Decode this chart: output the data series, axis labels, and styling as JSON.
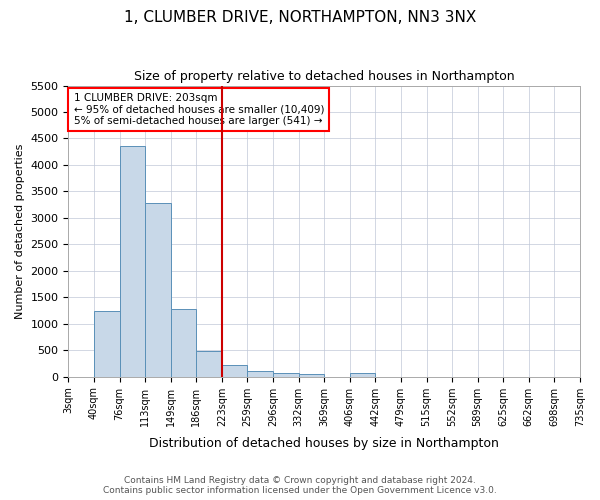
{
  "title1": "1, CLUMBER DRIVE, NORTHAMPTON, NN3 3NX",
  "title2": "Size of property relative to detached houses in Northampton",
  "xlabel": "Distribution of detached houses by size in Northampton",
  "ylabel": "Number of detached properties",
  "footer": "Contains HM Land Registry data © Crown copyright and database right 2024.\nContains public sector information licensed under the Open Government Licence v3.0.",
  "bin_labels": [
    "3sqm",
    "40sqm",
    "76sqm",
    "113sqm",
    "149sqm",
    "186sqm",
    "223sqm",
    "259sqm",
    "296sqm",
    "332sqm",
    "369sqm",
    "406sqm",
    "442sqm",
    "479sqm",
    "515sqm",
    "552sqm",
    "589sqm",
    "625sqm",
    "662sqm",
    "698sqm",
    "735sqm"
  ],
  "bar_values": [
    0,
    1250,
    4350,
    3280,
    1280,
    480,
    220,
    100,
    70,
    50,
    0,
    70,
    0,
    0,
    0,
    0,
    0,
    0,
    0,
    0
  ],
  "bar_color": "#c8d8e8",
  "bar_edge_color": "#5a90b8",
  "red_line_x": 6,
  "ylim": [
    0,
    5500
  ],
  "yticks": [
    0,
    500,
    1000,
    1500,
    2000,
    2500,
    3000,
    3500,
    4000,
    4500,
    5000,
    5500
  ],
  "annotation_text": "1 CLUMBER DRIVE: 203sqm\n← 95% of detached houses are smaller (10,409)\n5% of semi-detached houses are larger (541) →",
  "annotation_box_color": "#ff0000",
  "property_line_color": "#cc0000"
}
